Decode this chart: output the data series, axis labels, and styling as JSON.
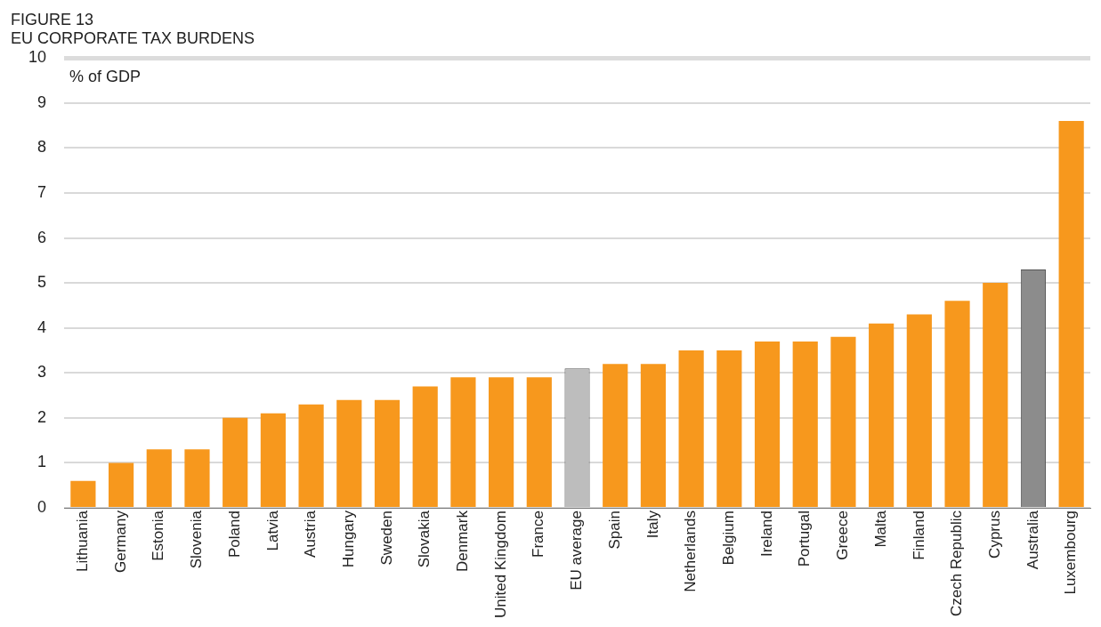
{
  "chart_data": {
    "type": "bar",
    "title": "FIGURE 13",
    "subtitle": "EU CORPORATE TAX BURDENS",
    "ylabel": "% of GDP",
    "categories": [
      "Lithuania",
      "Germany",
      "Estonia",
      "Slovenia",
      "Poland",
      "Latvia",
      "Austria",
      "Hungary",
      "Sweden",
      "Slovakia",
      "Denmark",
      "United Kingdom",
      "France",
      "EU average",
      "Spain",
      "Italy",
      "Netherlands",
      "Belgium",
      "Ireland",
      "Portugal",
      "Greece",
      "Malta",
      "Finland",
      "Czech Republic",
      "Cyprus",
      "Australia",
      "Luxembourg"
    ],
    "values": [
      0.6,
      1.0,
      1.3,
      1.3,
      2.0,
      2.1,
      2.3,
      2.4,
      2.4,
      2.7,
      2.9,
      2.9,
      2.9,
      3.1,
      3.2,
      3.2,
      3.5,
      3.5,
      3.7,
      3.7,
      3.8,
      4.1,
      4.3,
      4.6,
      5.0,
      5.3,
      8.6
    ],
    "colors": [
      "#f7981d",
      "#f7981d",
      "#f7981d",
      "#f7981d",
      "#f7981d",
      "#f7981d",
      "#f7981d",
      "#f7981d",
      "#f7981d",
      "#f7981d",
      "#f7981d",
      "#f7981d",
      "#f7981d",
      "#bdbdbd",
      "#f7981d",
      "#f7981d",
      "#f7981d",
      "#f7981d",
      "#f7981d",
      "#f7981d",
      "#f7981d",
      "#f7981d",
      "#f7981d",
      "#f7981d",
      "#f7981d",
      "#8c8c8c",
      "#f7981d"
    ],
    "ylim": [
      0,
      10
    ],
    "yticks": [
      0,
      1,
      2,
      3,
      4,
      5,
      6,
      7,
      8,
      9,
      10
    ],
    "grid": "y",
    "legend": false
  }
}
